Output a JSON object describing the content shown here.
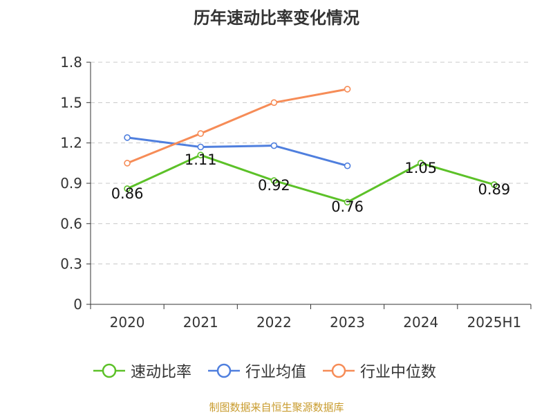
{
  "chart_data": {
    "type": "line",
    "title": "历年速动比率变化情况",
    "categories": [
      "2020",
      "2021",
      "2022",
      "2023",
      "2024",
      "2025H1"
    ],
    "ylim": [
      0,
      1.8
    ],
    "yticks": [
      "0",
      "0.3",
      "0.6",
      "0.9",
      "1.2",
      "1.5",
      "1.8"
    ],
    "grid": true,
    "legend_position": "bottom",
    "series": [
      {
        "name": "速动比率",
        "color": "#5cc128",
        "values": [
          0.86,
          1.11,
          0.92,
          0.76,
          1.05,
          0.89
        ],
        "labels": [
          "0.86",
          "1.11",
          "0.92",
          "0.76",
          "1.05",
          "0.89"
        ]
      },
      {
        "name": "行业均值",
        "color": "#4f7fde",
        "values": [
          1.24,
          1.17,
          1.18,
          1.03,
          null,
          null
        ]
      },
      {
        "name": "行业中位数",
        "color": "#f68c57",
        "values": [
          1.05,
          1.27,
          1.5,
          1.6,
          null,
          null
        ]
      }
    ]
  },
  "source_note": "制图数据来自恒生聚源数据库"
}
